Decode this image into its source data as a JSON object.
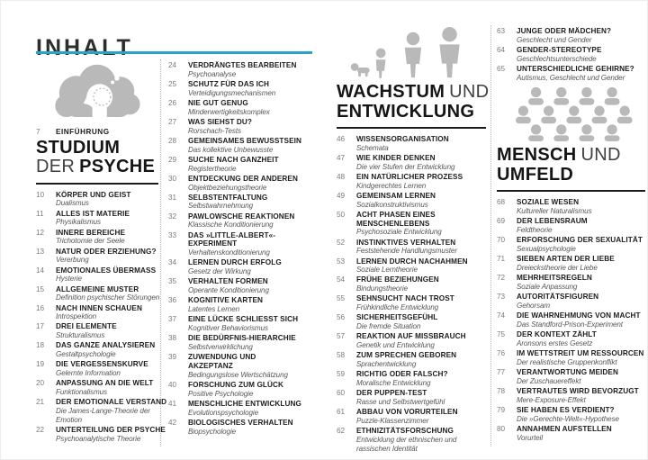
{
  "header": {
    "title": "INHALT"
  },
  "colors": {
    "accent": "#2aa3c8",
    "icon_gray": "#b9b9b9",
    "heading_text": "#151515",
    "rule_black": "#1a1a1a"
  },
  "icons": {
    "col1": "head-in-cloud-icon",
    "col3": "human-growth-stages-icon",
    "col4": "crowd-of-people-icon"
  },
  "intro": {
    "n": "7",
    "label": "EINFÜHRUNG"
  },
  "sections": {
    "studium": {
      "t1b": "STUDIUM",
      "t2l": "DER",
      "t2b": "PSYCHE"
    },
    "wachstum": {
      "t1b": "WACHSTUM",
      "t1l": "UND",
      "t2b": "ENTWICKLUNG"
    },
    "mensch": {
      "t1b": "MENSCH",
      "t1l": "UND",
      "t2b": "UMFELD"
    }
  },
  "columns": {
    "col1": {
      "entries": [
        {
          "n": "10",
          "t": "KÖRPER UND GEIST",
          "s": "Dualismus"
        },
        {
          "n": "11",
          "t": "ALLES IST MATERIE",
          "s": "Physikalismus"
        },
        {
          "n": "12",
          "t": "INNERE BEREICHE",
          "s": "Trichotomie der Seele"
        },
        {
          "n": "13",
          "t": "NATUR ODER ERZIEHUNG?",
          "s": "Vererbung"
        },
        {
          "n": "14",
          "t": "EMOTIONALES ÜBERMASS",
          "s": "Hysterie"
        },
        {
          "n": "15",
          "t": "ALLGEMEINE MUSTER",
          "s": "Definition psychischer Störungen"
        },
        {
          "n": "16",
          "t": "NACH INNEN SCHAUEN",
          "s": "Introspektion"
        },
        {
          "n": "17",
          "t": "DREI ELEMENTE",
          "s": "Strukturalismus"
        },
        {
          "n": "18",
          "t": "DAS GANZE ANALYSIEREN",
          "s": "Gestaltpsychologie"
        },
        {
          "n": "19",
          "t": "DIE VERGESSENSKURVE",
          "s": "Gelernte Information"
        },
        {
          "n": "20",
          "t": "ANPASSUNG AN DIE WELT",
          "s": "Funktionalismus"
        },
        {
          "n": "21",
          "t": "DER EMOTIONALE VERSTAND",
          "s": "Die James-Lange-Theorie der\nEmotion"
        },
        {
          "n": "22",
          "t": "UNTERTEILUNG DER PSYCHE",
          "s": "Psychoanalytische Theorie"
        }
      ]
    },
    "col2": {
      "entries": [
        {
          "n": "24",
          "t": "VERDRÄNGTES BEARBEITEN",
          "s": "Psychoanalyse"
        },
        {
          "n": "25",
          "t": "SCHUTZ FÜR DAS ICH",
          "s": "Verteidigungsmechanismen"
        },
        {
          "n": "26",
          "t": "NIE GUT GENUG",
          "s": "Minderwertigkeitskomplex"
        },
        {
          "n": "27",
          "t": "WAS SIEHST DU?",
          "s": "Rorschach-Tests"
        },
        {
          "n": "28",
          "t": "GEMEINSAMES BEWUSSTSEIN",
          "s": "Das kollektive Unbewusste"
        },
        {
          "n": "29",
          "t": "SUCHE NACH GANZHEIT",
          "s": "Registertheorie"
        },
        {
          "n": "30",
          "t": "ENTDECKUNG DER ANDEREN",
          "s": "Objektbeziehungstheorie"
        },
        {
          "n": "31",
          "t": "SELBSTENTFALTUNG",
          "s": "Selbstwahrnehmung"
        },
        {
          "n": "32",
          "t": "PAWLOWSCHE REAKTIONEN",
          "s": "Klassische Konditionierung"
        },
        {
          "n": "33",
          "t": "DAS »LITTLE-ALBERT«-\nEXPERIMENT",
          "s": "Verhaltenskonditionierung"
        },
        {
          "n": "34",
          "t": "LERNEN DURCH ERFOLG",
          "s": "Gesetz der Wirkung"
        },
        {
          "n": "35",
          "t": "VERHALTEN FORMEN",
          "s": "Operante Konditionierung"
        },
        {
          "n": "36",
          "t": "KOGNITIVE KARTEN",
          "s": "Latentes Lernen"
        },
        {
          "n": "37",
          "t": "EINE LÜCKE SCHLIESST SICH",
          "s": "Kognitiver Behaviorismus"
        },
        {
          "n": "38",
          "t": "DIE BEDÜRFNIS-HIERARCHIE",
          "s": "Selbstverwirklichung"
        },
        {
          "n": "39",
          "t": "ZUWENDUNG UND\nAKZEPTANZ",
          "s": "Bedingungslose Wertschätzung"
        },
        {
          "n": "40",
          "t": "FORSCHUNG ZUM GLÜCK",
          "s": "Positive Psychologie"
        },
        {
          "n": "41",
          "t": "MENSCHLICHE ENTWICKLUNG",
          "s": "Evolutionspsychologie"
        },
        {
          "n": "42",
          "t": "BIOLOGISCHES VERHALTEN",
          "s": "Biopsychologie"
        }
      ]
    },
    "col3": {
      "entries": [
        {
          "n": "46",
          "t": "WISSENSORGANISATION",
          "s": "Schemata"
        },
        {
          "n": "47",
          "t": "WIE KINDER DENKEN",
          "s": "Die vier Stufen der Entwicklung"
        },
        {
          "n": "48",
          "t": "EIN NATÜRLICHER PROZESS",
          "s": "Kindgerechtes Lernen"
        },
        {
          "n": "49",
          "t": "GEMEINSAM LERNEN",
          "s": "Sozialkonstruktivismus"
        },
        {
          "n": "50",
          "t": "ACHT PHASEN EINES\nMENSCHENLEBENS",
          "s": "Psychosoziale Entwicklung"
        },
        {
          "n": "52",
          "t": "INSTINKTIVES VERHALTEN",
          "s": "Feststehende Handlungsmuster"
        },
        {
          "n": "53",
          "t": "LERNEN DURCH NACHAHMEN",
          "s": "Soziale Lerntheorie"
        },
        {
          "n": "54",
          "t": "FRÜHE BEZIEHUNGEN",
          "s": "Bindungstheorie"
        },
        {
          "n": "55",
          "t": "SEHNSUCHT NACH TROST",
          "s": "Frühkindliche Entwicklung"
        },
        {
          "n": "56",
          "t": "SICHERHEITSGEFÜHL",
          "s": "Die fremde Situation"
        },
        {
          "n": "57",
          "t": "REAKTION AUF MISSBRAUCH",
          "s": "Genetik und Entwicklung"
        },
        {
          "n": "58",
          "t": "ZUM SPRECHEN GEBOREN",
          "s": "Sprachentwicklung"
        },
        {
          "n": "59",
          "t": "RICHTIG ODER FALSCH?",
          "s": "Moralische Entwicklung"
        },
        {
          "n": "60",
          "t": "DER PUPPEN-TEST",
          "s": "Rasse und Selbstwertgefühl"
        },
        {
          "n": "61",
          "t": "ABBAU VON VORURTEILEN",
          "s": "Puzzle-Klassenzimmer"
        },
        {
          "n": "62",
          "t": "ETHNIZITÄTSFORSCHUNG",
          "s": "Entwicklung der ethnischen und\nrassischen Identität"
        }
      ]
    },
    "col4_top": {
      "entries": [
        {
          "n": "63",
          "t": "JUNGE ODER MÄDCHEN?",
          "s": "Geschlecht und Gender"
        },
        {
          "n": "64",
          "t": "GENDER-STEREOTYPE",
          "s": "Geschlechtsunterschiede"
        },
        {
          "n": "65",
          "t": "UNTERSCHIEDLICHE GEHIRNE?",
          "s": "Autismus, Geschlecht und Gender"
        }
      ]
    },
    "col4": {
      "entries": [
        {
          "n": "68",
          "t": "SOZIALE WESEN",
          "s": "Kultureller Naturalismus"
        },
        {
          "n": "69",
          "t": "DER LEBENSRAUM",
          "s": "Feldtheorie"
        },
        {
          "n": "70",
          "t": "ERFORSCHUNG DER SEXUALITÄT",
          "s": "Sexualpsychologie"
        },
        {
          "n": "71",
          "t": "SIEBEN ARTEN DER LIEBE",
          "s": "Dreieckstheorie der Liebe"
        },
        {
          "n": "72",
          "t": "MEHRHEITSREGELN",
          "s": "Soziale Anpassung"
        },
        {
          "n": "73",
          "t": "AUTORITÄTSFIGUREN",
          "s": "Gehorsam"
        },
        {
          "n": "74",
          "t": "DIE WAHRNEHMUNG VON MACHT",
          "s": "Das Standford-Prison-Experiment"
        },
        {
          "n": "75",
          "t": "DER KONTEXT ZÄHLT",
          "s": "Aronsons erstes Gesetz"
        },
        {
          "n": "76",
          "t": "IM WETTSTREIT UM RESSOURCEN",
          "s": "Der realistische Gruppenkonflikt"
        },
        {
          "n": "77",
          "t": "VERANTWORTUNG MEIDEN",
          "s": "Der Zuschauereffekt"
        },
        {
          "n": "78",
          "t": "VERTRAUTES WIRD BEVORZUGT",
          "s": "Mere-Exposure-Effekt"
        },
        {
          "n": "79",
          "t": "SIE HABEN ES VERDIENT?",
          "s": "Die »Gerechte-Welt«-Hypothese"
        },
        {
          "n": "80",
          "t": "ANNAHMEN AUFSTELLEN",
          "s": "Vorurteil"
        }
      ]
    }
  }
}
